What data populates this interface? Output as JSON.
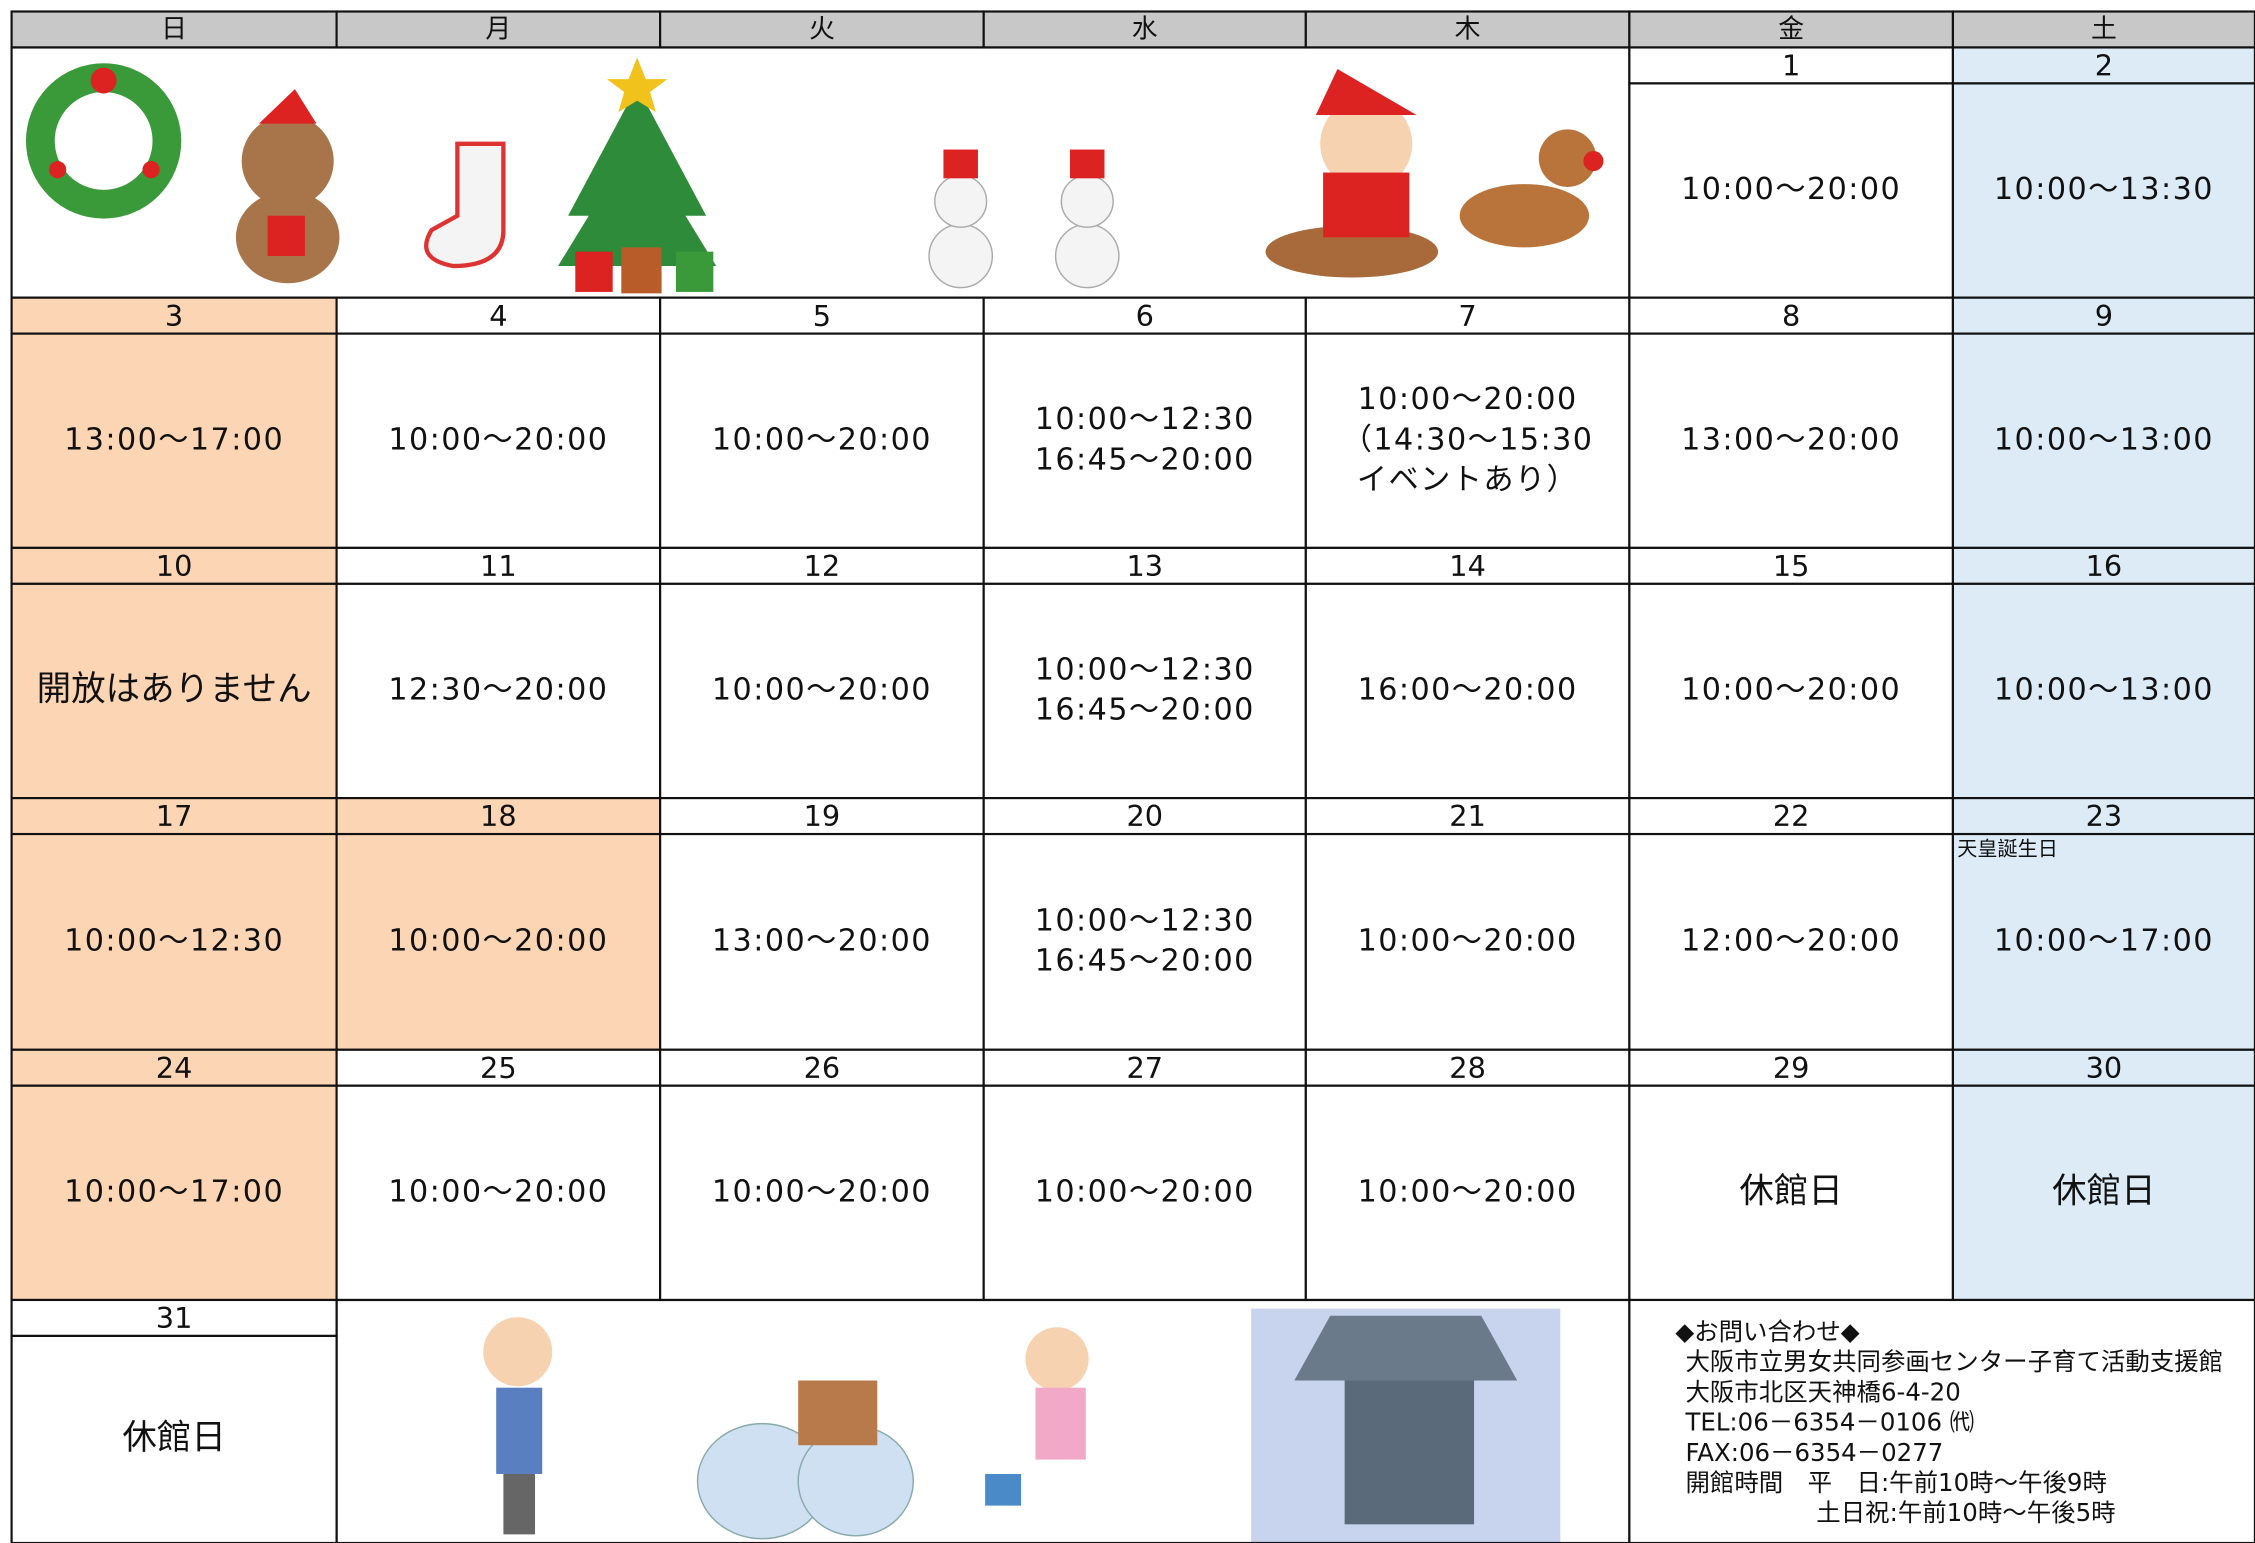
{
  "weekdays": [
    "日",
    "月",
    "火",
    "水",
    "木",
    "金",
    "土"
  ],
  "weeks": [
    [
      null,
      null,
      null,
      null,
      null,
      {
        "day": 1,
        "lines": [
          "10:00〜20:00"
        ]
      },
      {
        "day": 2,
        "lines": [
          "10:00〜13:30"
        ],
        "color": "#ddebf7"
      }
    ],
    [
      {
        "day": 3,
        "lines": [
          "13:00〜17:00"
        ],
        "color": "#fcd5b5"
      },
      {
        "day": 4,
        "lines": [
          "10:00〜20:00"
        ]
      },
      {
        "day": 5,
        "lines": [
          "10:00〜20:00"
        ]
      },
      {
        "day": 6,
        "lines": [
          "10:00〜12:30",
          "16:45〜20:00"
        ]
      },
      {
        "day": 7,
        "lines": [
          "10:00〜20:00",
          "（14:30〜15:30",
          "イベントあり）"
        ]
      },
      {
        "day": 8,
        "lines": [
          "13:00〜20:00"
        ]
      },
      {
        "day": 9,
        "lines": [
          "10:00〜13:00"
        ],
        "color": "#ddebf7"
      }
    ],
    [
      {
        "day": 10,
        "lines": [
          "開放はありません"
        ],
        "color": "#fcd5b5"
      },
      {
        "day": 11,
        "lines": [
          "12:30〜20:00"
        ]
      },
      {
        "day": 12,
        "lines": [
          "10:00〜20:00"
        ]
      },
      {
        "day": 13,
        "lines": [
          "10:00〜12:30",
          "16:45〜20:00"
        ]
      },
      {
        "day": 14,
        "lines": [
          "16:00〜20:00"
        ]
      },
      {
        "day": 15,
        "lines": [
          "10:00〜20:00"
        ]
      },
      {
        "day": 16,
        "lines": [
          "10:00〜13:00"
        ],
        "color": "#ddebf7"
      }
    ],
    [
      {
        "day": 17,
        "lines": [
          "10:00〜12:30"
        ],
        "color": "#fcd5b5"
      },
      {
        "day": 18,
        "lines": [
          "10:00〜20:00"
        ],
        "color": "#fcd5b5"
      },
      {
        "day": 19,
        "lines": [
          "13:00〜20:00"
        ]
      },
      {
        "day": 20,
        "lines": [
          "10:00〜12:30",
          "16:45〜20:00"
        ]
      },
      {
        "day": 21,
        "lines": [
          "10:00〜20:00"
        ]
      },
      {
        "day": 22,
        "lines": [
          "12:00〜20:00"
        ]
      },
      {
        "day": 23,
        "lines": [
          "10:00〜17:00"
        ],
        "note": "天皇誕生日",
        "color": "#ddebf7"
      }
    ],
    [
      {
        "day": 24,
        "lines": [
          "10:00〜17:00"
        ],
        "color": "#fcd5b5"
      },
      {
        "day": 25,
        "lines": [
          "10:00〜20:00"
        ]
      },
      {
        "day": 26,
        "lines": [
          "10:00〜20:00"
        ]
      },
      {
        "day": 27,
        "lines": [
          "10:00〜20:00"
        ]
      },
      {
        "day": 28,
        "lines": [
          "10:00〜20:00"
        ]
      },
      {
        "day": 29,
        "lines": [
          "休館日"
        ]
      },
      {
        "day": 30,
        "lines": [
          "休館日"
        ],
        "color": "#ddebf7"
      }
    ],
    [
      {
        "day": 31,
        "lines": [
          "休館日"
        ]
      },
      null,
      null,
      null,
      null,
      null,
      null
    ]
  ],
  "contact": [
    "◆お問い合わせ◆",
    "大阪市立男女共同参画センター子育て活動支援館",
    "大阪市北区天神橋6-4-20",
    "TEL:06－6354－0106 ㈹",
    "FAX:06－6354－0277",
    "開館時間　平　日:午前10時〜午後9時",
    "土日祝:午前10時〜午後5時"
  ]
}
